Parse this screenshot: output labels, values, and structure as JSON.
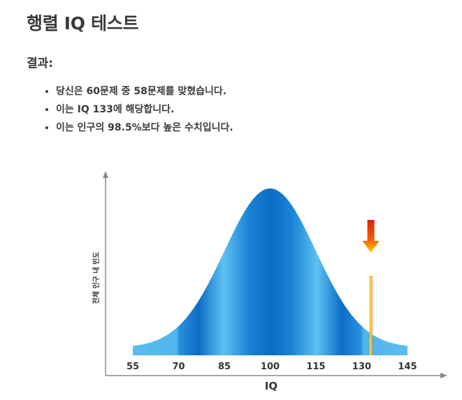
{
  "page": {
    "title": "행렬 IQ 테스트",
    "result_heading": "결과:"
  },
  "results": [
    "당신은 60문제 중 58문제를 맞혔습니다.",
    "이는 IQ 133에 해당합니다.",
    "이는 인구의 98.5%보다 높은 수치입니다."
  ],
  "colors": {
    "curve_dark": "#0a6cc4",
    "curve_light": "#4fb8ef",
    "marker": "#f0a000",
    "arrow_top": "#e02000",
    "arrow_bottom": "#ffd000"
  },
  "chart_data": {
    "type": "area",
    "title": "",
    "xlabel": "IQ",
    "ylabel": "전체 인구 내 빈도",
    "x_ticks": [
      "55",
      "70",
      "85",
      "100",
      "115",
      "130",
      "145"
    ],
    "xlim": [
      55,
      145
    ],
    "distribution": {
      "mean": 100,
      "sd": 15
    },
    "marker_value": 133,
    "grid": false,
    "legend": "none"
  }
}
